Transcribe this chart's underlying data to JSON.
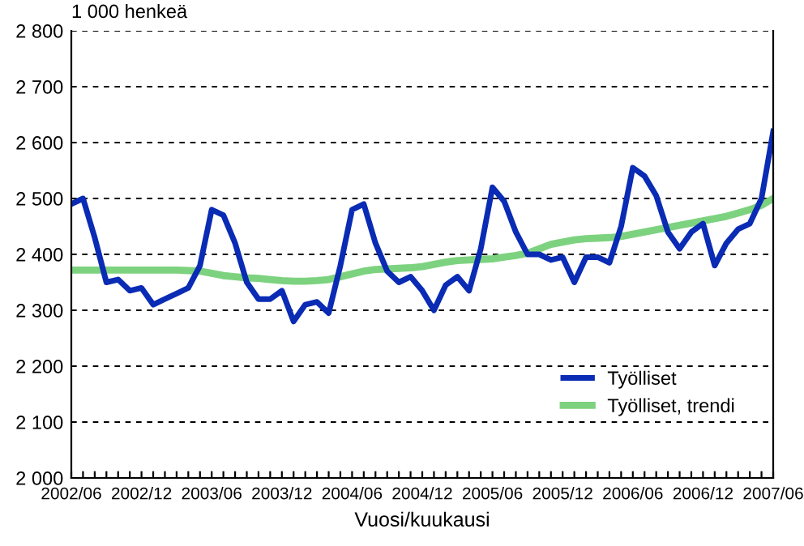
{
  "chart_data": {
    "type": "line",
    "ylabel": "1 000 henkeä",
    "xlabel": "Vuosi/kuukausi",
    "categories": [
      "2002/06",
      null,
      null,
      null,
      null,
      null,
      "2002/12",
      null,
      null,
      null,
      null,
      null,
      "2003/06",
      null,
      null,
      null,
      null,
      null,
      "2003/12",
      null,
      null,
      null,
      null,
      null,
      "2004/06",
      null,
      null,
      null,
      null,
      null,
      "2004/12",
      null,
      null,
      null,
      null,
      null,
      "2005/06",
      null,
      null,
      null,
      null,
      null,
      "2005/12",
      null,
      null,
      null,
      null,
      null,
      "2006/06",
      null,
      null,
      null,
      null,
      null,
      "2006/12",
      null,
      null,
      null,
      null,
      null,
      "2007/06"
    ],
    "series": [
      {
        "name": "Työlliset",
        "color": "#0a2bb4",
        "values": [
          2490,
          2500,
          2430,
          2350,
          2355,
          2335,
          2340,
          2310,
          2320,
          2330,
          2340,
          2380,
          2480,
          2470,
          2420,
          2350,
          2320,
          2320,
          2335,
          2280,
          2310,
          2315,
          2295,
          2380,
          2480,
          2490,
          2420,
          2370,
          2350,
          2360,
          2335,
          2300,
          2345,
          2360,
          2335,
          2410,
          2520,
          2495,
          2440,
          2400,
          2400,
          2390,
          2395,
          2350,
          2395,
          2395,
          2385,
          2450,
          2555,
          2540,
          2505,
          2440,
          2410,
          2440,
          2455,
          2380,
          2420,
          2445,
          2455,
          2500,
          2620
        ]
      },
      {
        "name": "Työlliset, trendi",
        "color": "#7dd27f",
        "values": [
          2372,
          2372,
          2372,
          2372,
          2372,
          2372,
          2372,
          2372,
          2372,
          2372,
          2371,
          2370,
          2366,
          2362,
          2360,
          2358,
          2357,
          2355,
          2353,
          2352,
          2352,
          2353,
          2355,
          2360,
          2365,
          2370,
          2373,
          2374,
          2375,
          2376,
          2378,
          2382,
          2386,
          2389,
          2390,
          2391,
          2392,
          2395,
          2398,
          2402,
          2410,
          2418,
          2422,
          2426,
          2428,
          2429,
          2430,
          2432,
          2436,
          2440,
          2444,
          2448,
          2452,
          2456,
          2460,
          2464,
          2468,
          2474,
          2480,
          2488,
          2500
        ]
      }
    ],
    "ylim": [
      2000,
      2800
    ],
    "yticks": [
      {
        "value": 2000,
        "label": "2 000"
      },
      {
        "value": 2100,
        "label": "2 100"
      },
      {
        "value": 2200,
        "label": "2 200"
      },
      {
        "value": 2300,
        "label": "2 300"
      },
      {
        "value": 2400,
        "label": "2 400"
      },
      {
        "value": 2500,
        "label": "2 500"
      },
      {
        "value": 2600,
        "label": "2 600"
      },
      {
        "value": 2700,
        "label": "2 700"
      },
      {
        "value": 2800,
        "label": "2 800"
      }
    ],
    "grid": "y",
    "legend": "bottom right",
    "line_style": "solid",
    "marker": "none"
  }
}
